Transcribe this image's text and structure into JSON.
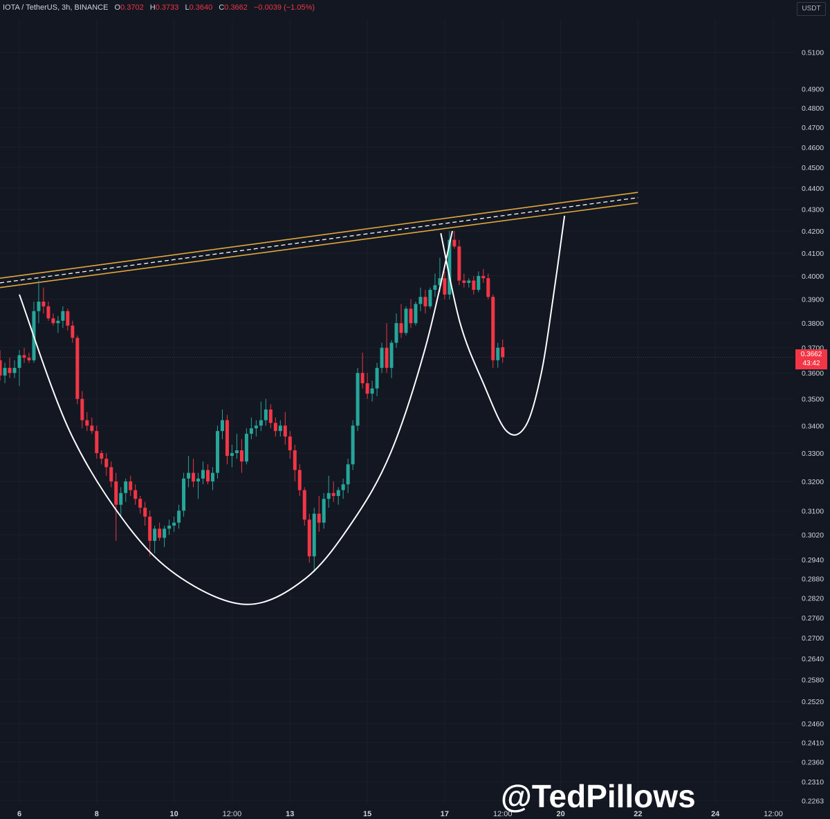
{
  "header": {
    "symbol": "IOTA / TetherUS, 3h, BINANCE",
    "open_label": "O",
    "open_value": "0.3702",
    "high_label": "H",
    "high_value": "0.3733",
    "low_label": "L",
    "low_value": "0.3640",
    "close_label": "C",
    "close_value": "0.3662",
    "change": "−0.0039 (−1.05%)"
  },
  "currency_button": "USDT",
  "last_price": {
    "price": "0.3662",
    "countdown": "43:42"
  },
  "watermark": "@TedPillows",
  "colors": {
    "background": "#131722",
    "up": "#26a69a",
    "down": "#f23645",
    "channel": "#e0a93b",
    "pattern": "#ffffff"
  },
  "chart_data": {
    "type": "candlestick",
    "log_scale": true,
    "ylim": [
      0.2255,
      0.5285
    ],
    "y_ticks": [
      "0.5100",
      "0.4900",
      "0.4800",
      "0.4700",
      "0.4600",
      "0.4500",
      "0.4400",
      "0.4300",
      "0.4200",
      "0.4100",
      "0.4000",
      "0.3900",
      "0.3800",
      "0.3700",
      "0.3600",
      "0.3500",
      "0.3400",
      "0.3300",
      "0.3200",
      "0.3100",
      "0.3020",
      "0.2940",
      "0.2880",
      "0.2820",
      "0.2760",
      "0.2700",
      "0.2640",
      "0.2580",
      "0.2520",
      "0.2460",
      "0.2410",
      "0.2360",
      "0.2310",
      "0.2263"
    ],
    "x_ticks": [
      "6",
      "8",
      "10",
      "12:00",
      "13",
      "15",
      "17",
      "12:00",
      "20",
      "22",
      "24",
      "12:00"
    ],
    "x_tick_days": [
      6,
      8,
      10,
      11.5,
      13,
      15,
      17,
      18.5,
      20,
      22,
      24,
      25.5
    ],
    "xlim": [
      5.5,
      27.0
    ],
    "candles": [
      {
        "t": 5.5,
        "o": 0.365,
        "h": 0.369,
        "l": 0.357,
        "c": 0.359
      },
      {
        "t": 5.625,
        "o": 0.359,
        "h": 0.364,
        "l": 0.356,
        "c": 0.362
      },
      {
        "t": 5.75,
        "o": 0.362,
        "h": 0.366,
        "l": 0.358,
        "c": 0.36
      },
      {
        "t": 5.875,
        "o": 0.36,
        "h": 0.365,
        "l": 0.358,
        "c": 0.362
      },
      {
        "t": 6.0,
        "o": 0.362,
        "h": 0.369,
        "l": 0.355,
        "c": 0.367
      },
      {
        "t": 6.125,
        "o": 0.367,
        "h": 0.37,
        "l": 0.364,
        "c": 0.366
      },
      {
        "t": 6.25,
        "o": 0.366,
        "h": 0.368,
        "l": 0.364,
        "c": 0.365
      },
      {
        "t": 6.375,
        "o": 0.365,
        "h": 0.389,
        "l": 0.364,
        "c": 0.385
      },
      {
        "t": 6.5,
        "o": 0.385,
        "h": 0.398,
        "l": 0.38,
        "c": 0.389
      },
      {
        "t": 6.625,
        "o": 0.389,
        "h": 0.395,
        "l": 0.384,
        "c": 0.387
      },
      {
        "t": 6.75,
        "o": 0.387,
        "h": 0.389,
        "l": 0.381,
        "c": 0.382
      },
      {
        "t": 6.875,
        "o": 0.382,
        "h": 0.384,
        "l": 0.379,
        "c": 0.38
      },
      {
        "t": 7.0,
        "o": 0.38,
        "h": 0.383,
        "l": 0.376,
        "c": 0.381
      },
      {
        "t": 7.125,
        "o": 0.381,
        "h": 0.387,
        "l": 0.378,
        "c": 0.385
      },
      {
        "t": 7.25,
        "o": 0.385,
        "h": 0.386,
        "l": 0.377,
        "c": 0.379
      },
      {
        "t": 7.375,
        "o": 0.379,
        "h": 0.381,
        "l": 0.372,
        "c": 0.374
      },
      {
        "t": 7.5,
        "o": 0.374,
        "h": 0.375,
        "l": 0.348,
        "c": 0.35
      },
      {
        "t": 7.625,
        "o": 0.35,
        "h": 0.353,
        "l": 0.339,
        "c": 0.342
      },
      {
        "t": 7.75,
        "o": 0.342,
        "h": 0.345,
        "l": 0.338,
        "c": 0.34
      },
      {
        "t": 7.875,
        "o": 0.34,
        "h": 0.343,
        "l": 0.337,
        "c": 0.338
      },
      {
        "t": 8.0,
        "o": 0.338,
        "h": 0.34,
        "l": 0.328,
        "c": 0.33
      },
      {
        "t": 8.125,
        "o": 0.33,
        "h": 0.331,
        "l": 0.326,
        "c": 0.328
      },
      {
        "t": 8.25,
        "o": 0.328,
        "h": 0.33,
        "l": 0.322,
        "c": 0.325
      },
      {
        "t": 8.375,
        "o": 0.325,
        "h": 0.327,
        "l": 0.318,
        "c": 0.32
      },
      {
        "t": 8.5,
        "o": 0.32,
        "h": 0.323,
        "l": 0.3,
        "c": 0.312
      },
      {
        "t": 8.625,
        "o": 0.312,
        "h": 0.318,
        "l": 0.308,
        "c": 0.316
      },
      {
        "t": 8.75,
        "o": 0.316,
        "h": 0.321,
        "l": 0.313,
        "c": 0.32
      },
      {
        "t": 8.875,
        "o": 0.32,
        "h": 0.322,
        "l": 0.315,
        "c": 0.317
      },
      {
        "t": 9.0,
        "o": 0.317,
        "h": 0.319,
        "l": 0.312,
        "c": 0.314
      },
      {
        "t": 9.125,
        "o": 0.314,
        "h": 0.315,
        "l": 0.309,
        "c": 0.311
      },
      {
        "t": 9.25,
        "o": 0.311,
        "h": 0.313,
        "l": 0.305,
        "c": 0.308
      },
      {
        "t": 9.375,
        "o": 0.308,
        "h": 0.31,
        "l": 0.295,
        "c": 0.3
      },
      {
        "t": 9.5,
        "o": 0.3,
        "h": 0.305,
        "l": 0.296,
        "c": 0.304
      },
      {
        "t": 9.625,
        "o": 0.304,
        "h": 0.306,
        "l": 0.3,
        "c": 0.301
      },
      {
        "t": 9.75,
        "o": 0.301,
        "h": 0.305,
        "l": 0.298,
        "c": 0.304
      },
      {
        "t": 9.875,
        "o": 0.304,
        "h": 0.307,
        "l": 0.302,
        "c": 0.305
      },
      {
        "t": 10.0,
        "o": 0.305,
        "h": 0.308,
        "l": 0.303,
        "c": 0.306
      },
      {
        "t": 10.125,
        "o": 0.306,
        "h": 0.312,
        "l": 0.304,
        "c": 0.31
      },
      {
        "t": 10.25,
        "o": 0.31,
        "h": 0.323,
        "l": 0.308,
        "c": 0.321
      },
      {
        "t": 10.375,
        "o": 0.321,
        "h": 0.329,
        "l": 0.318,
        "c": 0.323
      },
      {
        "t": 10.5,
        "o": 0.323,
        "h": 0.328,
        "l": 0.318,
        "c": 0.32
      },
      {
        "t": 10.625,
        "o": 0.32,
        "h": 0.323,
        "l": 0.314,
        "c": 0.321
      },
      {
        "t": 10.75,
        "o": 0.321,
        "h": 0.327,
        "l": 0.319,
        "c": 0.324
      },
      {
        "t": 10.875,
        "o": 0.324,
        "h": 0.326,
        "l": 0.319,
        "c": 0.32
      },
      {
        "t": 11.0,
        "o": 0.32,
        "h": 0.325,
        "l": 0.317,
        "c": 0.323
      },
      {
        "t": 11.125,
        "o": 0.323,
        "h": 0.34,
        "l": 0.321,
        "c": 0.338
      },
      {
        "t": 11.25,
        "o": 0.338,
        "h": 0.346,
        "l": 0.335,
        "c": 0.342
      },
      {
        "t": 11.375,
        "o": 0.342,
        "h": 0.344,
        "l": 0.326,
        "c": 0.329
      },
      {
        "t": 11.5,
        "o": 0.329,
        "h": 0.333,
        "l": 0.325,
        "c": 0.33
      },
      {
        "t": 11.625,
        "o": 0.33,
        "h": 0.337,
        "l": 0.328,
        "c": 0.331
      },
      {
        "t": 11.75,
        "o": 0.331,
        "h": 0.335,
        "l": 0.323,
        "c": 0.327
      },
      {
        "t": 11.875,
        "o": 0.327,
        "h": 0.339,
        "l": 0.326,
        "c": 0.337
      },
      {
        "t": 12.0,
        "o": 0.337,
        "h": 0.343,
        "l": 0.335,
        "c": 0.339
      },
      {
        "t": 12.125,
        "o": 0.339,
        "h": 0.342,
        "l": 0.336,
        "c": 0.34
      },
      {
        "t": 12.25,
        "o": 0.34,
        "h": 0.349,
        "l": 0.338,
        "c": 0.342
      },
      {
        "t": 12.375,
        "o": 0.342,
        "h": 0.35,
        "l": 0.34,
        "c": 0.346
      },
      {
        "t": 12.5,
        "o": 0.346,
        "h": 0.348,
        "l": 0.339,
        "c": 0.341
      },
      {
        "t": 12.625,
        "o": 0.341,
        "h": 0.343,
        "l": 0.336,
        "c": 0.338
      },
      {
        "t": 12.75,
        "o": 0.338,
        "h": 0.342,
        "l": 0.336,
        "c": 0.34
      },
      {
        "t": 12.875,
        "o": 0.34,
        "h": 0.345,
        "l": 0.333,
        "c": 0.336
      },
      {
        "t": 13.0,
        "o": 0.336,
        "h": 0.338,
        "l": 0.328,
        "c": 0.331
      },
      {
        "t": 13.125,
        "o": 0.331,
        "h": 0.333,
        "l": 0.32,
        "c": 0.324
      },
      {
        "t": 13.25,
        "o": 0.324,
        "h": 0.326,
        "l": 0.315,
        "c": 0.317
      },
      {
        "t": 13.375,
        "o": 0.317,
        "h": 0.318,
        "l": 0.305,
        "c": 0.307
      },
      {
        "t": 13.5,
        "o": 0.307,
        "h": 0.309,
        "l": 0.293,
        "c": 0.295
      },
      {
        "t": 13.625,
        "o": 0.295,
        "h": 0.311,
        "l": 0.29,
        "c": 0.309
      },
      {
        "t": 13.75,
        "o": 0.309,
        "h": 0.315,
        "l": 0.303,
        "c": 0.306
      },
      {
        "t": 13.875,
        "o": 0.306,
        "h": 0.316,
        "l": 0.304,
        "c": 0.314
      },
      {
        "t": 14.0,
        "o": 0.314,
        "h": 0.322,
        "l": 0.311,
        "c": 0.316
      },
      {
        "t": 14.125,
        "o": 0.316,
        "h": 0.32,
        "l": 0.313,
        "c": 0.315
      },
      {
        "t": 14.25,
        "o": 0.315,
        "h": 0.318,
        "l": 0.312,
        "c": 0.317
      },
      {
        "t": 14.375,
        "o": 0.317,
        "h": 0.321,
        "l": 0.314,
        "c": 0.319
      },
      {
        "t": 14.5,
        "o": 0.319,
        "h": 0.328,
        "l": 0.316,
        "c": 0.326
      },
      {
        "t": 14.625,
        "o": 0.326,
        "h": 0.342,
        "l": 0.324,
        "c": 0.34
      },
      {
        "t": 14.75,
        "o": 0.34,
        "h": 0.362,
        "l": 0.338,
        "c": 0.36
      },
      {
        "t": 14.875,
        "o": 0.36,
        "h": 0.368,
        "l": 0.354,
        "c": 0.356
      },
      {
        "t": 15.0,
        "o": 0.356,
        "h": 0.36,
        "l": 0.35,
        "c": 0.352
      },
      {
        "t": 15.125,
        "o": 0.352,
        "h": 0.357,
        "l": 0.349,
        "c": 0.354
      },
      {
        "t": 15.25,
        "o": 0.354,
        "h": 0.364,
        "l": 0.351,
        "c": 0.362
      },
      {
        "t": 15.375,
        "o": 0.362,
        "h": 0.372,
        "l": 0.36,
        "c": 0.37
      },
      {
        "t": 15.5,
        "o": 0.37,
        "h": 0.38,
        "l": 0.36,
        "c": 0.362
      },
      {
        "t": 15.625,
        "o": 0.362,
        "h": 0.373,
        "l": 0.358,
        "c": 0.372
      },
      {
        "t": 15.75,
        "o": 0.372,
        "h": 0.384,
        "l": 0.37,
        "c": 0.38
      },
      {
        "t": 15.875,
        "o": 0.38,
        "h": 0.388,
        "l": 0.374,
        "c": 0.376
      },
      {
        "t": 16.0,
        "o": 0.376,
        "h": 0.387,
        "l": 0.375,
        "c": 0.386
      },
      {
        "t": 16.125,
        "o": 0.386,
        "h": 0.39,
        "l": 0.378,
        "c": 0.38
      },
      {
        "t": 16.25,
        "o": 0.38,
        "h": 0.389,
        "l": 0.379,
        "c": 0.388
      },
      {
        "t": 16.375,
        "o": 0.388,
        "h": 0.395,
        "l": 0.385,
        "c": 0.391
      },
      {
        "t": 16.5,
        "o": 0.391,
        "h": 0.394,
        "l": 0.384,
        "c": 0.387
      },
      {
        "t": 16.625,
        "o": 0.387,
        "h": 0.395,
        "l": 0.386,
        "c": 0.394
      },
      {
        "t": 16.75,
        "o": 0.394,
        "h": 0.401,
        "l": 0.391,
        "c": 0.396
      },
      {
        "t": 16.875,
        "o": 0.396,
        "h": 0.408,
        "l": 0.393,
        "c": 0.399
      },
      {
        "t": 17.0,
        "o": 0.399,
        "h": 0.402,
        "l": 0.39,
        "c": 0.392
      },
      {
        "t": 17.125,
        "o": 0.392,
        "h": 0.42,
        "l": 0.39,
        "c": 0.416
      },
      {
        "t": 17.25,
        "o": 0.416,
        "h": 0.42,
        "l": 0.412,
        "c": 0.413
      },
      {
        "t": 17.375,
        "o": 0.413,
        "h": 0.416,
        "l": 0.396,
        "c": 0.398
      },
      {
        "t": 17.5,
        "o": 0.398,
        "h": 0.401,
        "l": 0.395,
        "c": 0.397
      },
      {
        "t": 17.625,
        "o": 0.397,
        "h": 0.399,
        "l": 0.395,
        "c": 0.398
      },
      {
        "t": 17.75,
        "o": 0.398,
        "h": 0.4,
        "l": 0.392,
        "c": 0.394
      },
      {
        "t": 17.875,
        "o": 0.394,
        "h": 0.402,
        "l": 0.393,
        "c": 0.4
      },
      {
        "t": 18.0,
        "o": 0.4,
        "h": 0.403,
        "l": 0.397,
        "c": 0.399
      },
      {
        "t": 18.125,
        "o": 0.399,
        "h": 0.401,
        "l": 0.39,
        "c": 0.391
      },
      {
        "t": 18.25,
        "o": 0.391,
        "h": 0.392,
        "l": 0.362,
        "c": 0.365
      },
      {
        "t": 18.375,
        "o": 0.365,
        "h": 0.372,
        "l": 0.362,
        "c": 0.37
      },
      {
        "t": 18.5,
        "o": 0.3702,
        "h": 0.3733,
        "l": 0.364,
        "c": 0.3662
      }
    ],
    "channel": {
      "upper_line": [
        [
          5.5,
          0.399
        ],
        [
          22.0,
          0.438
        ]
      ],
      "lower_line": [
        [
          5.5,
          0.395
        ],
        [
          22.0,
          0.433
        ]
      ],
      "dashed_mid": [
        [
          5.5,
          0.397
        ],
        [
          22.0,
          0.4355
        ]
      ]
    },
    "pattern_curves": [
      {
        "name": "cup",
        "points": [
          [
            6.0,
            0.392
          ],
          [
            7.3,
            0.338
          ],
          [
            8.8,
            0.305
          ],
          [
            10.2,
            0.288
          ],
          [
            11.9,
            0.28
          ],
          [
            13.4,
            0.288
          ],
          [
            14.6,
            0.306
          ],
          [
            15.6,
            0.33
          ],
          [
            16.5,
            0.37
          ],
          [
            17.2,
            0.42
          ]
        ]
      },
      {
        "name": "handle",
        "points": [
          [
            16.9,
            0.419
          ],
          [
            17.4,
            0.38
          ],
          [
            18.0,
            0.356
          ],
          [
            18.6,
            0.338
          ],
          [
            19.1,
            0.34
          ],
          [
            19.5,
            0.36
          ],
          [
            19.8,
            0.39
          ],
          [
            20.1,
            0.427
          ]
        ]
      }
    ]
  }
}
